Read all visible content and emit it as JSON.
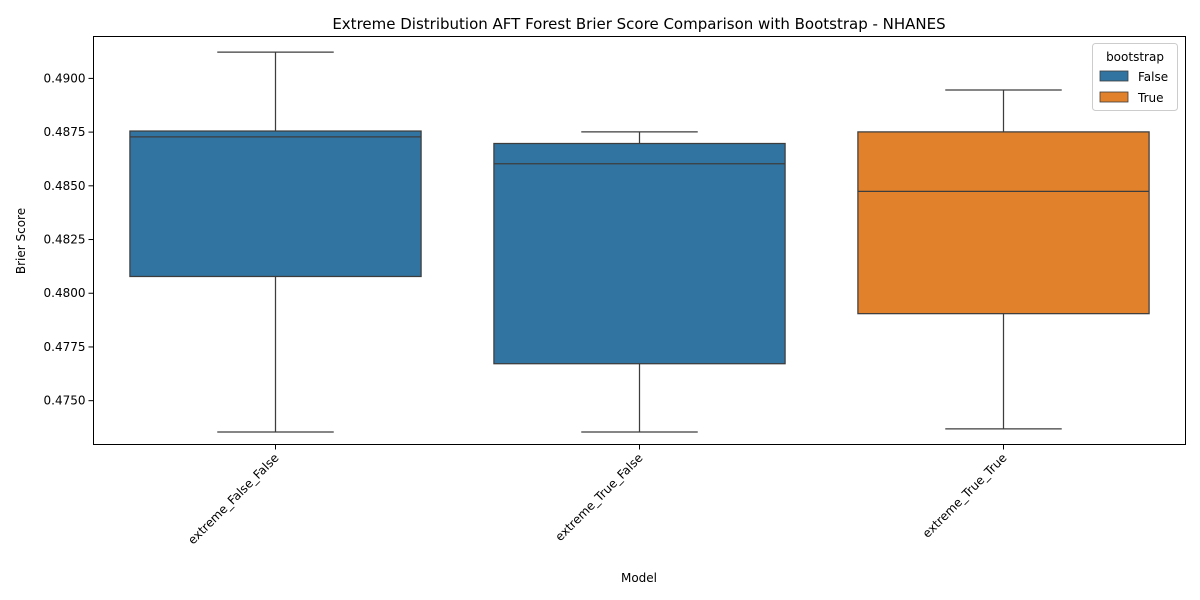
{
  "chart_data": {
    "type": "box",
    "title": "Extreme Distribution AFT Forest Brier Score Comparison with Bootstrap  - NHANES",
    "xlabel": "Model",
    "ylabel": "Brier Score",
    "ylim": [
      0.47296,
      0.49195
    ],
    "y_ticks": [
      "0.4750",
      "0.4775",
      "0.4800",
      "0.4825",
      "0.4850",
      "0.4875",
      "0.4900"
    ],
    "categories": [
      "extreme_False_False",
      "extreme_True_False",
      "extreme_True_True"
    ],
    "grid": false,
    "legend": {
      "title": "bootstrap",
      "placement": "top-right",
      "entries": [
        {
          "label": "False",
          "color": "#3274a1"
        },
        {
          "label": "True",
          "color": "#e1812c"
        }
      ]
    },
    "boxes": [
      {
        "category": "extreme_False_False",
        "bootstrap": "False",
        "whisker_low": 0.47354,
        "q1": 0.48078,
        "median": 0.48728,
        "q3": 0.48755,
        "whisker_high": 0.49122
      },
      {
        "category": "extreme_True_False",
        "bootstrap": "False",
        "whisker_low": 0.47354,
        "q1": 0.47672,
        "median": 0.48603,
        "q3": 0.48697,
        "whisker_high": 0.48751
      },
      {
        "category": "extreme_True_True",
        "bootstrap": "True",
        "whisker_low": 0.47369,
        "q1": 0.47905,
        "median": 0.48474,
        "q3": 0.48751,
        "whisker_high": 0.48946
      }
    ]
  }
}
